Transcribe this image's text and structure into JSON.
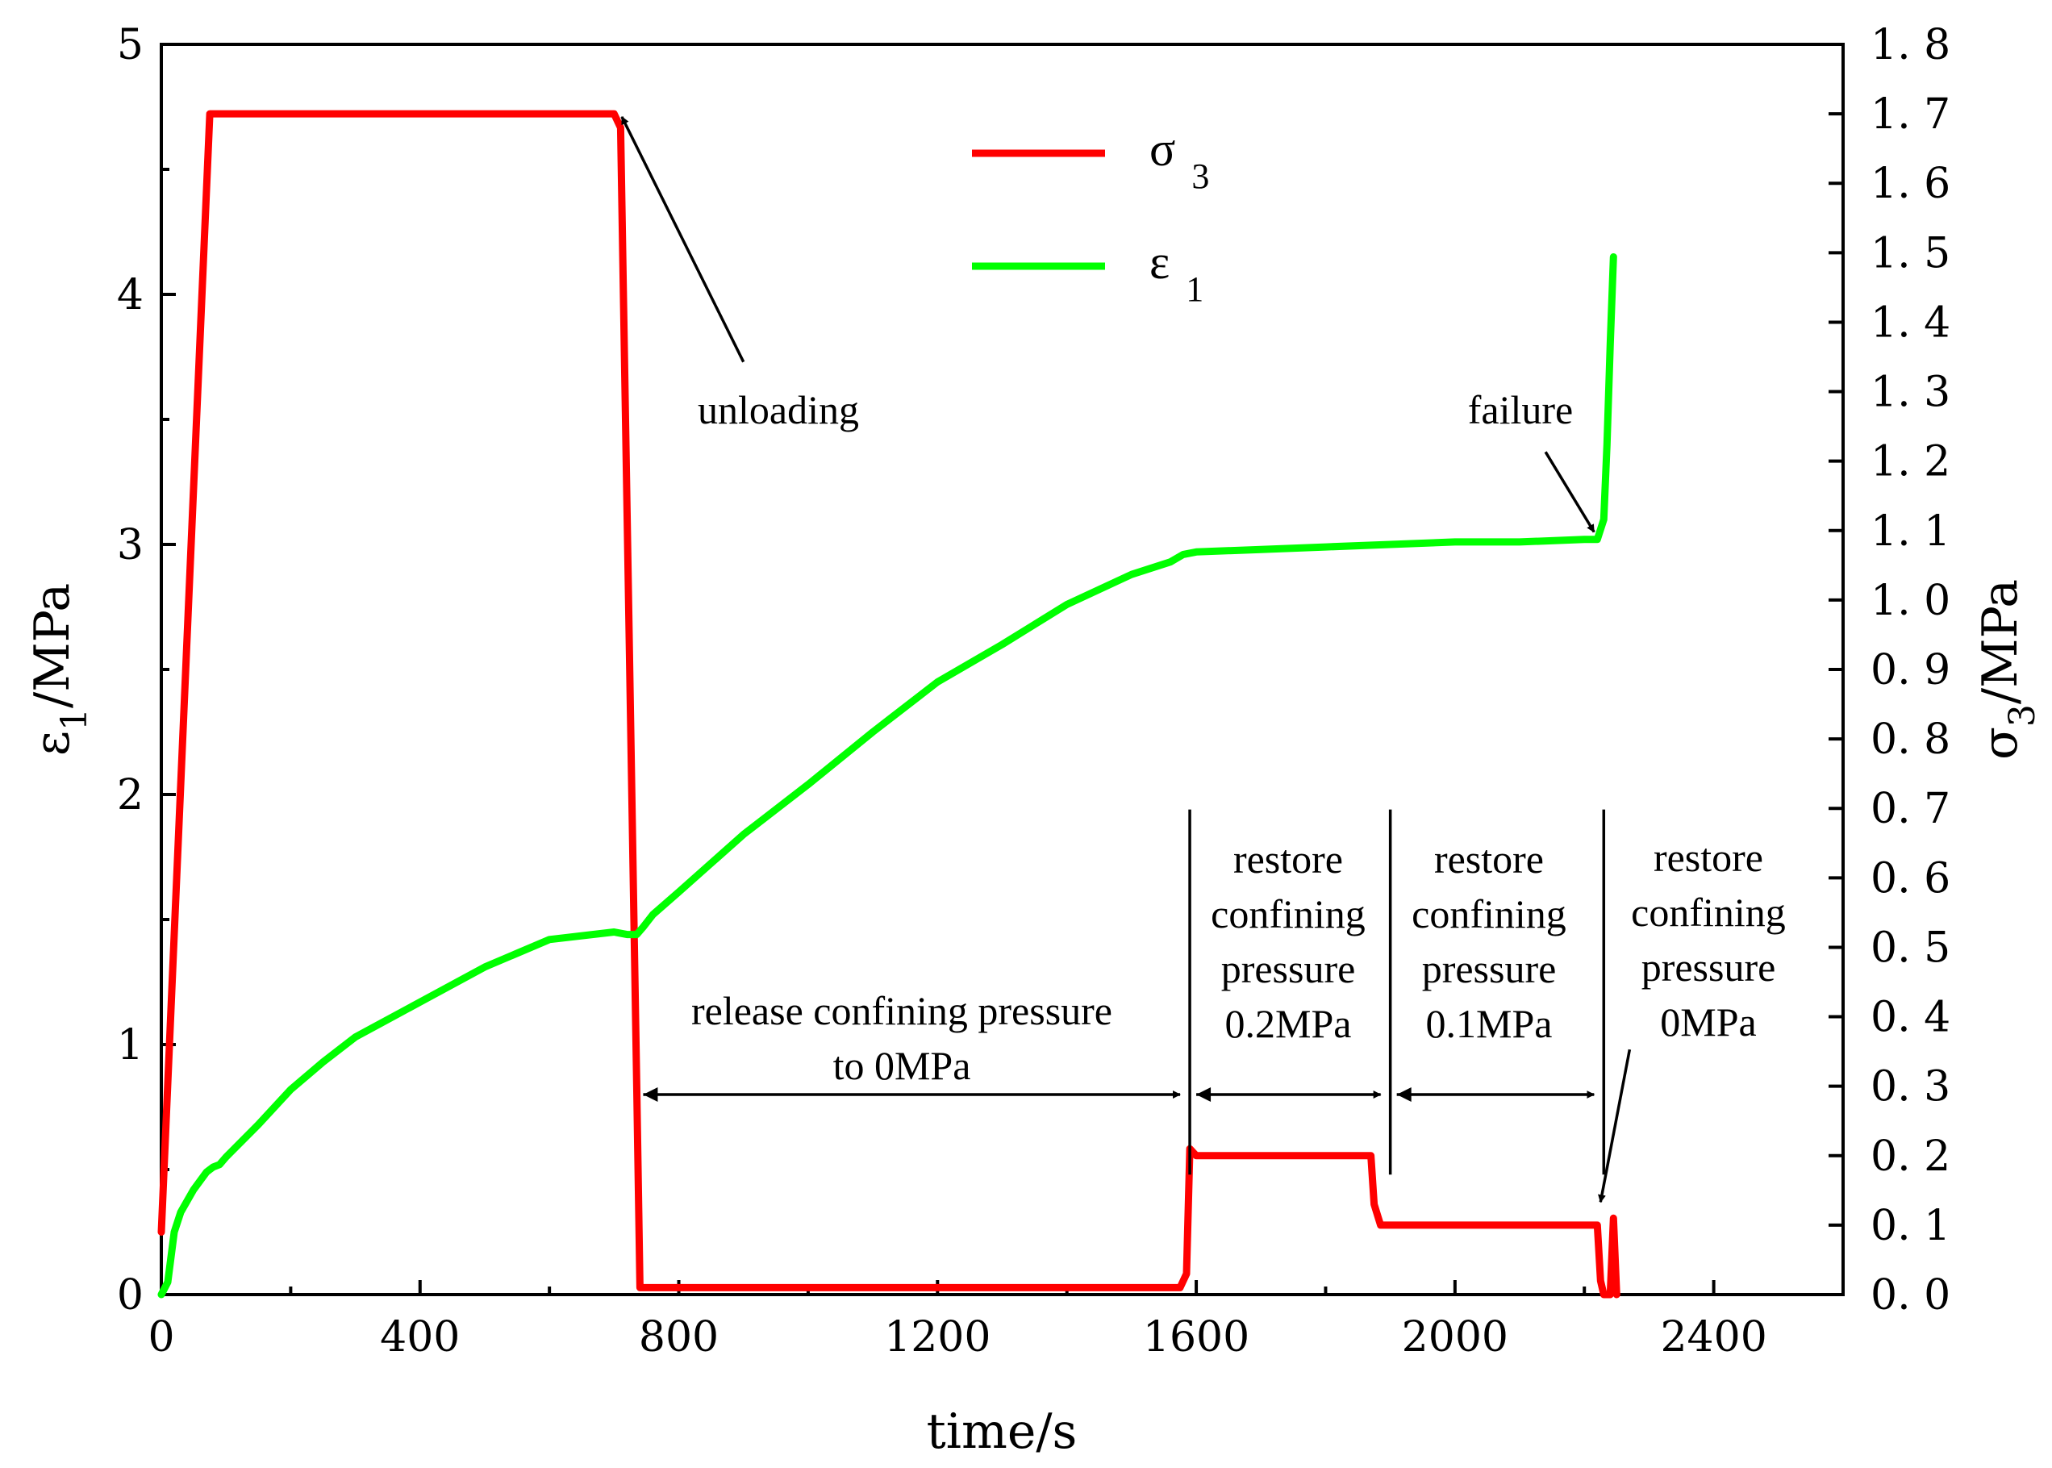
{
  "chart_data": {
    "type": "line",
    "xlabel": "time/s",
    "ylabel_left": {
      "main": "ε",
      "sub": "1",
      "unit": "/MPa"
    },
    "ylabel_right": {
      "main": "σ",
      "sub": "3",
      "unit": "/MPa"
    },
    "xlim": [
      0,
      2600
    ],
    "ylim_left": [
      0,
      5
    ],
    "ylim_right": [
      0,
      1.8
    ],
    "x_ticks": [
      0,
      400,
      800,
      1200,
      1600,
      2000,
      2400
    ],
    "y_left_ticks": [
      0,
      1,
      2,
      3,
      4,
      5
    ],
    "y_right_ticks": [
      "0.0",
      "0.1",
      "0.2",
      "0.3",
      "0.4",
      "0.5",
      "0.6",
      "0.7",
      "0.8",
      "0.9",
      "1.0",
      "1.1",
      "1.2",
      "1.3",
      "1.4",
      "1.5",
      "1.6",
      "1.7",
      "1.8"
    ],
    "legend": [
      {
        "name": "σ",
        "sub": "3",
        "color": "#ff0000"
      },
      {
        "name": "ε",
        "sub": "1",
        "color": "#00ff00"
      }
    ],
    "series": [
      {
        "name": "σ3",
        "axis": "right",
        "color": "#ff0000",
        "x": [
          0,
          75,
          700,
          710,
          735,
          740,
          760,
          1000,
          1575,
          1585,
          1590,
          1600,
          1870,
          1875,
          1885,
          2220,
          2225,
          2230,
          2240,
          2245,
          2250
        ],
        "y": [
          0.09,
          1.7,
          1.7,
          1.68,
          0.3,
          0.01,
          0.01,
          0.01,
          0.01,
          0.03,
          0.21,
          0.2,
          0.2,
          0.13,
          0.1,
          0.1,
          0.02,
          0.0,
          0.0,
          0.11,
          0.0
        ]
      },
      {
        "name": "ε1",
        "axis": "left",
        "color": "#00ff00",
        "x": [
          0,
          10,
          20,
          30,
          50,
          70,
          80,
          90,
          100,
          150,
          200,
          250,
          300,
          400,
          500,
          600,
          700,
          720,
          735,
          745,
          760,
          800,
          900,
          1000,
          1100,
          1200,
          1300,
          1400,
          1500,
          1560,
          1580,
          1600,
          1700,
          1800,
          1900,
          2000,
          2100,
          2200,
          2220,
          2230,
          2235,
          2240,
          2245
        ],
        "y": [
          0.0,
          0.05,
          0.25,
          0.33,
          0.42,
          0.49,
          0.51,
          0.52,
          0.55,
          0.68,
          0.82,
          0.93,
          1.03,
          1.17,
          1.31,
          1.42,
          1.45,
          1.44,
          1.44,
          1.47,
          1.52,
          1.61,
          1.84,
          2.04,
          2.25,
          2.45,
          2.6,
          2.76,
          2.88,
          2.93,
          2.96,
          2.97,
          2.98,
          2.99,
          3.0,
          3.01,
          3.01,
          3.02,
          3.02,
          3.1,
          3.4,
          3.8,
          4.15
        ]
      }
    ],
    "annotations": {
      "unloading": "unloading",
      "failure": "failure",
      "release": [
        "release confining pressure",
        "to 0MPa"
      ],
      "restore_02": [
        "restore",
        "confining",
        "pressure",
        "0.2MPa"
      ],
      "restore_01": [
        "restore",
        "confining",
        "pressure",
        "0.1MPa"
      ],
      "restore_00": [
        "restore",
        "confining",
        "pressure",
        "0MPa"
      ]
    }
  }
}
